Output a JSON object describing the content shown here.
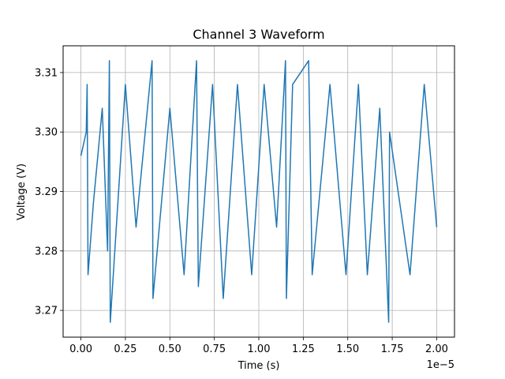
{
  "chart_data": {
    "type": "line",
    "title": "Channel 3 Waveform",
    "xlabel": "Time (s)",
    "ylabel": "Voltage (V)",
    "x_offset_label": "1e−5",
    "xlim": [
      -0.1,
      2.1
    ],
    "ylim": [
      3.2655,
      3.3145
    ],
    "xticks": [
      0.0,
      0.25,
      0.5,
      0.75,
      1.0,
      1.25,
      1.5,
      1.75,
      2.0
    ],
    "xtick_labels": [
      "0.00",
      "0.25",
      "0.50",
      "0.75",
      "1.00",
      "1.25",
      "1.50",
      "1.75",
      "2.00"
    ],
    "yticks": [
      3.27,
      3.28,
      3.29,
      3.3,
      3.31
    ],
    "ytick_labels": [
      "3.27",
      "3.28",
      "3.29",
      "3.30",
      "3.31"
    ],
    "grid": true,
    "series_color": "#1f77b4",
    "series": [
      {
        "x": [
          0.0,
          0.03,
          0.035,
          0.04,
          0.07,
          0.12,
          0.15,
          0.16,
          0.165,
          0.25,
          0.31,
          0.4,
          0.405,
          0.5,
          0.58,
          0.65,
          0.66,
          0.74,
          0.8,
          0.88,
          0.96,
          1.03,
          1.1,
          1.15,
          1.155,
          1.19,
          1.28,
          1.3,
          1.4,
          1.49,
          1.56,
          1.61,
          1.68,
          1.73,
          1.735,
          1.85,
          1.93,
          2.0
        ],
        "y": [
          3.296,
          3.3,
          3.308,
          3.276,
          3.288,
          3.304,
          3.28,
          3.312,
          3.268,
          3.308,
          3.284,
          3.312,
          3.272,
          3.304,
          3.276,
          3.312,
          3.274,
          3.308,
          3.272,
          3.308,
          3.276,
          3.308,
          3.284,
          3.312,
          3.272,
          3.308,
          3.312,
          3.276,
          3.308,
          3.276,
          3.308,
          3.276,
          3.304,
          3.268,
          3.3,
          3.276,
          3.308,
          3.284
        ]
      }
    ]
  }
}
